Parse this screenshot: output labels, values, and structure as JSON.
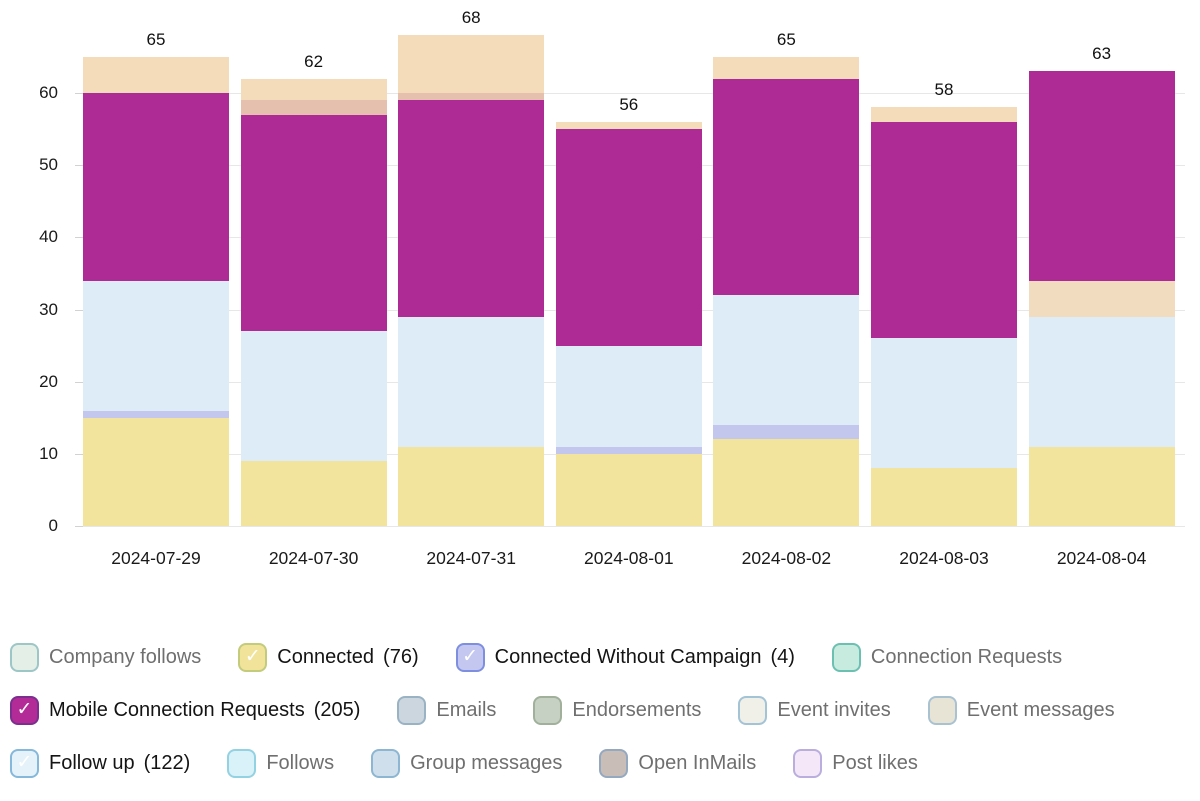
{
  "chart_data": {
    "type": "bar",
    "stacked": true,
    "title": "",
    "xlabel": "",
    "ylabel": "",
    "grid": true,
    "legend_position": "bottom",
    "ylim": [
      0,
      68
    ],
    "y_ticks": [
      0,
      10,
      20,
      30,
      40,
      50,
      60
    ],
    "categories": [
      "2024-07-29",
      "2024-07-30",
      "2024-07-31",
      "2024-08-01",
      "2024-08-02",
      "2024-08-03",
      "2024-08-04"
    ],
    "bar_totals": [
      65,
      62,
      68,
      56,
      65,
      58,
      63
    ],
    "series": [
      {
        "name": "Connected",
        "color": "#f2e49c",
        "values": [
          15,
          9,
          11,
          10,
          12,
          8,
          11
        ]
      },
      {
        "name": "Connected Without Campaign",
        "color": "#c3c7ee",
        "values": [
          1,
          0,
          0,
          1,
          2,
          0,
          0
        ]
      },
      {
        "name": "Follow up",
        "color": "#ddecf6",
        "values": [
          18,
          18,
          18,
          14,
          18,
          18,
          18
        ]
      },
      {
        "name": "Connection Requests",
        "color": "#f2dcc0",
        "values": [
          0,
          0,
          0,
          0,
          0,
          0,
          5
        ]
      },
      {
        "name": "Mobile Connection Requests",
        "color": "#ae2a94",
        "values": [
          26,
          30,
          30,
          30,
          30,
          30,
          29
        ]
      },
      {
        "name": "Open InMails",
        "color": "#e6c0ae",
        "values": [
          0,
          2,
          1,
          0,
          0,
          0,
          0
        ]
      },
      {
        "name": "Event messages",
        "color": "#f4dcbb",
        "values": [
          5,
          3,
          8,
          1,
          3,
          2,
          0
        ]
      }
    ]
  },
  "legend": {
    "rows": [
      [
        {
          "label": "Company follows",
          "count": "",
          "checked": false,
          "fill": "#e3efe7",
          "border": "#9dc6c6"
        },
        {
          "label": "Connected",
          "count": "(76)",
          "checked": true,
          "fill": "#f1e399",
          "border": "#c2cc7c"
        },
        {
          "label": "Connected Without Campaign",
          "count": "(4)",
          "checked": true,
          "fill": "#c4c8f0",
          "border": "#7e8fe0"
        },
        {
          "label": "Connection Requests",
          "count": "",
          "checked": false,
          "fill": "#c8ebdf",
          "border": "#6cc0b2"
        }
      ],
      [
        {
          "label": "Mobile Connection Requests",
          "count": "(205)",
          "checked": true,
          "fill": "#b32b97",
          "border": "#7c2f8e"
        },
        {
          "label": "Emails",
          "count": "",
          "checked": false,
          "fill": "#ccd6de",
          "border": "#9ab3c4"
        },
        {
          "label": "Endorsements",
          "count": "",
          "checked": false,
          "fill": "#c7d1c3",
          "border": "#a0b09b"
        },
        {
          "label": "Event invites",
          "count": "",
          "checked": false,
          "fill": "#f0efe8",
          "border": "#a3c3d6"
        },
        {
          "label": "Event messages",
          "count": "",
          "checked": false,
          "fill": "#e7e4d6",
          "border": "#a9c2d2"
        }
      ],
      [
        {
          "label": "Follow up",
          "count": "(122)",
          "checked": true,
          "fill": "#e6f2fa",
          "border": "#85b8da"
        },
        {
          "label": "Follows",
          "count": "",
          "checked": false,
          "fill": "#d9f1f8",
          "border": "#93d2e2"
        },
        {
          "label": "Group messages",
          "count": "",
          "checked": false,
          "fill": "#cfe0ec",
          "border": "#8cb6d2"
        },
        {
          "label": "Open InMails",
          "count": "",
          "checked": false,
          "fill": "#c9bdb7",
          "border": "#94a8c0"
        },
        {
          "label": "Post likes",
          "count": "",
          "checked": false,
          "fill": "#f4e8f8",
          "border": "#b9aedd"
        }
      ]
    ],
    "check_glyph": "✓",
    "colors": {
      "checked_text": "#141414",
      "unchecked_text": "#6f6f6f",
      "gridline": "#e7e7e7"
    }
  }
}
